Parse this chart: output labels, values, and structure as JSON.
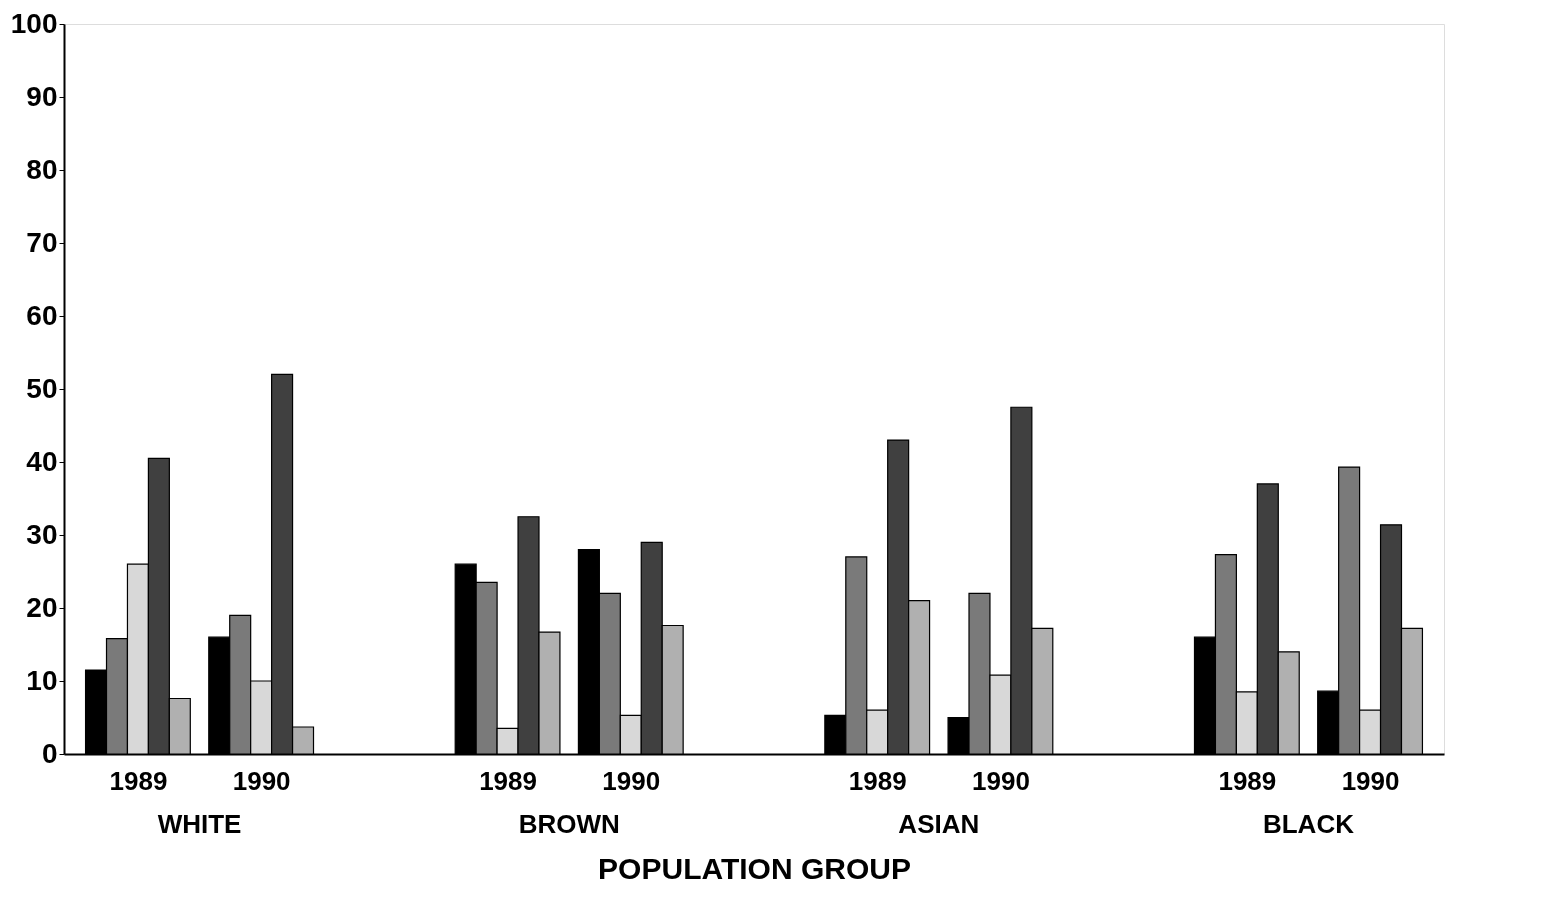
{
  "chart_data": {
    "type": "bar",
    "xlabel": "POPULATION GROUP",
    "categories": [
      "1989",
      "1990",
      "1989",
      "1990",
      "1989",
      "1990",
      "1989",
      "1990"
    ],
    "annotations": [
      "WHITE",
      "BROWN",
      "ASIAN",
      "BLACK"
    ],
    "series": [
      {
        "color": "#000000",
        "values": [
          11.5,
          16,
          26,
          28,
          5.3,
          5,
          16,
          8.6
        ]
      },
      {
        "color": "#7a7a7a",
        "values": [
          15.8,
          19,
          23.5,
          22,
          27,
          22,
          27.3,
          39.3
        ]
      },
      {
        "color": "#d8d8d8",
        "values": [
          26,
          10,
          3.5,
          5.3,
          6,
          10.8,
          8.5,
          6
        ]
      },
      {
        "color": "#404040",
        "values": [
          40.5,
          52,
          32.5,
          29,
          43,
          47.5,
          37,
          31.4
        ]
      },
      {
        "color": "#b0b0b0",
        "values": [
          7.6,
          3.7,
          16.7,
          17.6,
          21,
          17.2,
          14,
          17.2
        ]
      }
    ],
    "ylim": [
      0,
      100
    ],
    "yticks": [
      0,
      10,
      20,
      30,
      40,
      50,
      60,
      70,
      80,
      90,
      100
    ],
    "grid": false
  }
}
